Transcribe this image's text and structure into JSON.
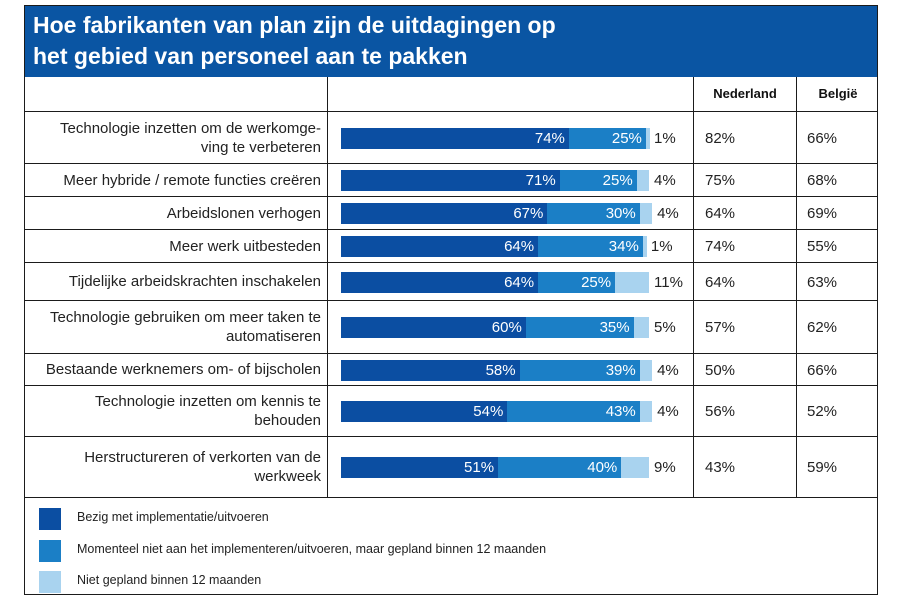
{
  "colors": {
    "title_bg": "#0a55a3",
    "implementing": "#0b4ea2",
    "planned": "#1b7fc6",
    "not_planned": "#a9d3ef"
  },
  "headers": {
    "nl": "Nederland",
    "be": "België"
  },
  "chart_data": {
    "type": "bar",
    "orientation": "horizontal",
    "stacked": true,
    "title": "Hoe fabrikanten van plan zijn de uitdagingen op het gebied van personeel aan te pakken",
    "title_lines": [
      "Hoe fabrikanten van plan zijn de uitdagingen op",
      "het gebied van personeel aan te pakken"
    ],
    "series": [
      {
        "key": "implementing",
        "name": "Bezig met implementatie/uitvoeren"
      },
      {
        "key": "planned",
        "name": "Momenteel niet aan het implementeren/uitvoeren, maar gepland binnen 12 maanden"
      },
      {
        "key": "not_planned",
        "name": "Niet gepland binnen 12 maanden"
      }
    ],
    "rows": [
      {
        "label_lines": [
          "Technologie inzetten om de werkomge-",
          "ving te verbeteren"
        ],
        "implementing": 74,
        "planned": 25,
        "not_planned": 1,
        "implementing_label": "74%",
        "planned_label": "25%",
        "not_planned_label": "1%",
        "nl": "82%",
        "be": "66%"
      },
      {
        "label_lines": [
          "Meer hybride / remote functies creëren"
        ],
        "implementing": 71,
        "planned": 25,
        "not_planned": 4,
        "implementing_label": "71%",
        "planned_label": "25%",
        "not_planned_label": "4%",
        "nl": "75%",
        "be": "68%"
      },
      {
        "label_lines": [
          "Arbeidslonen verhogen"
        ],
        "implementing": 67,
        "planned": 30,
        "not_planned": 4,
        "implementing_label": "67%",
        "planned_label": "30%",
        "not_planned_label": "4%",
        "nl": "64%",
        "be": "69%"
      },
      {
        "label_lines": [
          "Meer werk uitbesteden"
        ],
        "implementing": 64,
        "planned": 34,
        "not_planned": 1,
        "implementing_label": "64%",
        "planned_label": "34%",
        "not_planned_label": "1%",
        "nl": "74%",
        "be": "55%"
      },
      {
        "label_lines": [
          "Tijdelijke arbeidskrachten inschakelen"
        ],
        "implementing": 64,
        "planned": 25,
        "not_planned": 11,
        "implementing_label": "64%",
        "planned_label": "25%",
        "not_planned_label": "11%",
        "nl": "64%",
        "be": "63%"
      },
      {
        "label_lines": [
          "Technologie gebruiken om meer taken te",
          "automatiseren"
        ],
        "implementing": 60,
        "planned": 35,
        "not_planned": 5,
        "implementing_label": "60%",
        "planned_label": "35%",
        "not_planned_label": "5%",
        "nl": "57%",
        "be": "62%"
      },
      {
        "label_lines": [
          "Bestaande werknemers om- of bijscholen"
        ],
        "implementing": 58,
        "planned": 39,
        "not_planned": 4,
        "implementing_label": "58%",
        "planned_label": "39%",
        "not_planned_label": "4%",
        "nl": "50%",
        "be": "66%"
      },
      {
        "label_lines": [
          "Technologie inzetten om kennis te",
          "behouden"
        ],
        "implementing": 54,
        "planned": 43,
        "not_planned": 4,
        "implementing_label": "54%",
        "planned_label": "43%",
        "not_planned_label": "4%",
        "nl": "56%",
        "be": "52%"
      },
      {
        "label_lines": [
          "Herstructureren of verkorten van de",
          "werkweek"
        ],
        "implementing": 51,
        "planned": 40,
        "not_planned": 9,
        "implementing_label": "51%",
        "planned_label": "40%",
        "not_planned_label": "9%",
        "nl": "43%",
        "be": "59%"
      }
    ]
  },
  "legend": [
    {
      "key": "implementing",
      "label": "Bezig met implementatie/uitvoeren"
    },
    {
      "key": "planned",
      "label": "Momenteel niet aan het implementeren/uitvoeren, maar gepland binnen 12 maanden"
    },
    {
      "key": "not_planned",
      "label": "Niet gepland binnen 12 maanden"
    }
  ]
}
